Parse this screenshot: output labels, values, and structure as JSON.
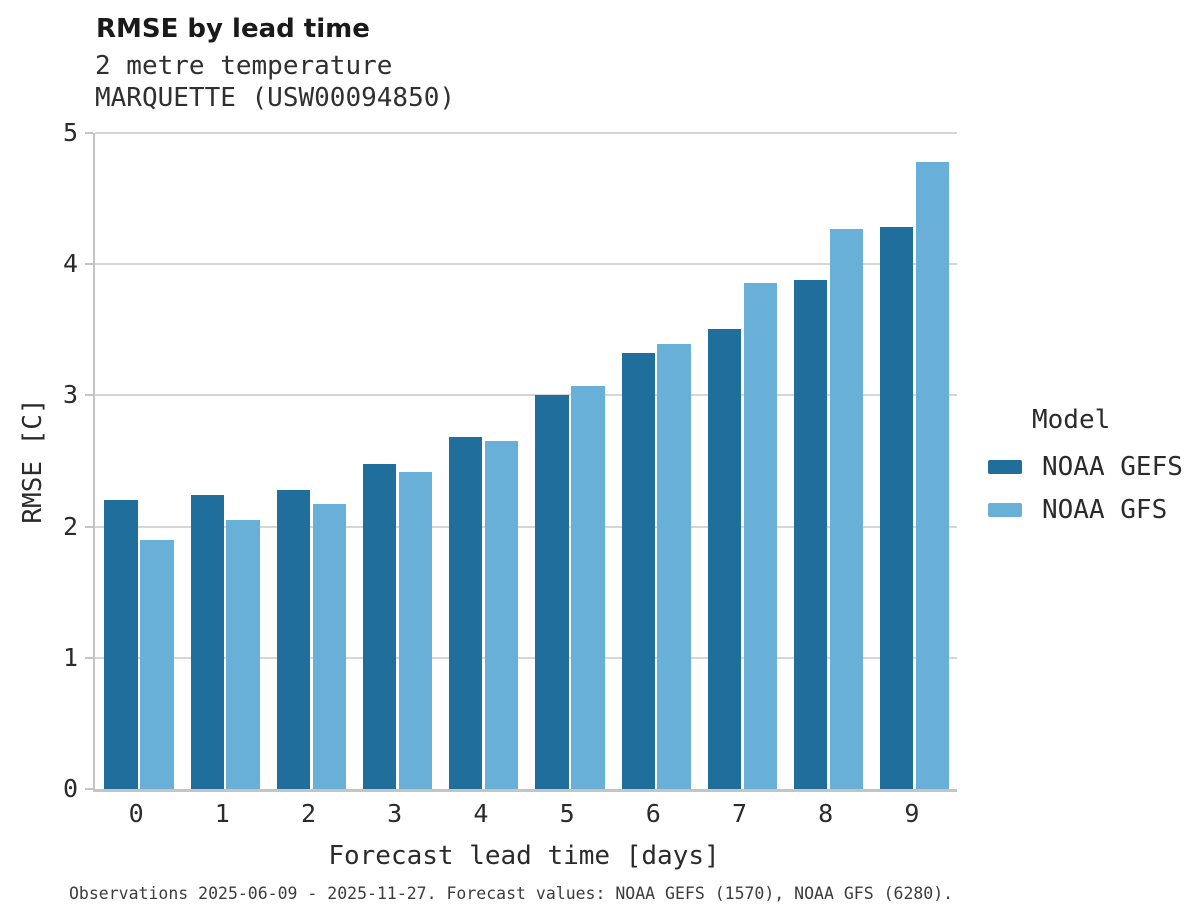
{
  "header": {
    "title": "RMSE by lead time",
    "subtitle": "2 metre temperature",
    "station": "MARQUETTE (USW00094850)"
  },
  "chart_data": {
    "type": "bar",
    "title": "RMSE by lead time",
    "subtitle": "2 metre temperature",
    "station": "MARQUETTE (USW00094850)",
    "categories": [
      "0",
      "1",
      "2",
      "3",
      "4",
      "5",
      "6",
      "7",
      "8",
      "9"
    ],
    "series": [
      {
        "name": "NOAA GEFS",
        "color": "#1f6e9c",
        "values": [
          2.2,
          2.24,
          2.28,
          2.48,
          2.68,
          3.0,
          3.32,
          3.51,
          3.88,
          4.28
        ]
      },
      {
        "name": "NOAA GFS",
        "color": "#69b0d8",
        "values": [
          1.9,
          2.05,
          2.17,
          2.42,
          2.65,
          3.07,
          3.39,
          3.86,
          4.27,
          4.78
        ]
      }
    ],
    "xlabel": "Forecast lead time [days]",
    "ylabel": "RMSE [C]",
    "ylim": [
      0,
      5
    ],
    "yticks": [
      0,
      1,
      2,
      3,
      4,
      5
    ],
    "grid": "horizontal",
    "legend_position": "right",
    "legend_title": "Model"
  },
  "legend": {
    "title": "Model"
  },
  "footer": {
    "caption": "Observations 2025-06-09 - 2025-11-27. Forecast values: NOAA GEFS (1570), NOAA GFS (6280)."
  },
  "colors": {
    "gefs": "#1f6e9c",
    "gfs": "#69b0d8",
    "gridline": "#d6d6d6",
    "spine": "#c4c4c4",
    "text": "#2b2b2b"
  }
}
